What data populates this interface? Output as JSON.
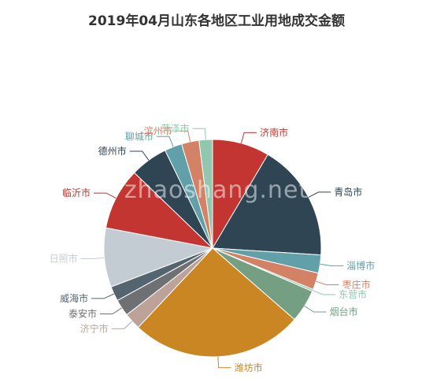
{
  "chart_data": {
    "type": "pie",
    "title": "2019年04月山东各地区工业用地成交金额",
    "watermark": "zhaoshang.net",
    "slices": [
      {
        "label": "济南市",
        "value": 8.5,
        "color": "#c23531"
      },
      {
        "label": "青岛市",
        "value": 17.5,
        "color": "#2f4554"
      },
      {
        "label": "淄博市",
        "value": 2.7,
        "color": "#61a0a8"
      },
      {
        "label": "枣庄市",
        "value": 2.5,
        "color": "#d48265"
      },
      {
        "label": "东营市",
        "value": 0.3,
        "color": "#91c7ae"
      },
      {
        "label": "烟台市",
        "value": 4.9,
        "color": "#749f83"
      },
      {
        "label": "潍坊市",
        "value": 25.6,
        "color": "#ca8622"
      },
      {
        "label": "济宁市",
        "value": 2.5,
        "color": "#bda29a"
      },
      {
        "label": "泰安市",
        "value": 2.5,
        "color": "#6e7074"
      },
      {
        "label": "威海市",
        "value": 2.2,
        "color": "#546570"
      },
      {
        "label": "日照市",
        "value": 8.8,
        "color": "#c4ccd3"
      },
      {
        "label": "临沂市",
        "value": 9.2,
        "color": "#c23531"
      },
      {
        "label": "德州市",
        "value": 5.6,
        "color": "#2f4554"
      },
      {
        "label": "聊城市",
        "value": 2.6,
        "color": "#61a0a8"
      },
      {
        "label": "滨州市",
        "value": 2.6,
        "color": "#d48265"
      },
      {
        "label": "菏泽市",
        "value": 2.0,
        "color": "#91c7ae"
      }
    ]
  }
}
